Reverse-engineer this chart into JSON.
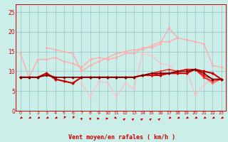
{
  "xlabel": "Vent moyen/en rafales ( km/h )",
  "x": [
    0,
    1,
    2,
    3,
    4,
    5,
    6,
    7,
    8,
    9,
    10,
    11,
    12,
    13,
    14,
    15,
    16,
    17,
    18,
    19,
    20,
    21,
    22,
    23
  ],
  "series": [
    {
      "color": "#ffaaaa",
      "alpha": 1.0,
      "lw": 1.0,
      "marker": "D",
      "ms": 2.0,
      "y": [
        14.5,
        8.5,
        13.0,
        13.0,
        13.5,
        12.5,
        12.0,
        11.0,
        13.0,
        13.5,
        13.0,
        13.5,
        14.5,
        14.5,
        16.0,
        16.0,
        17.0,
        21.0,
        18.5,
        18.0,
        17.5,
        17.0,
        11.5,
        11.0
      ]
    },
    {
      "color": "#ffaaaa",
      "alpha": 1.0,
      "lw": 1.0,
      "marker": "D",
      "ms": 2.0,
      "y": [
        null,
        null,
        null,
        16.0,
        15.5,
        15.0,
        14.5,
        10.0,
        11.5,
        12.5,
        13.5,
        14.5,
        15.0,
        15.5,
        15.5,
        16.5,
        17.5,
        17.5,
        18.5,
        null,
        null,
        null,
        null,
        null
      ]
    },
    {
      "color": "#ffbbbb",
      "alpha": 0.85,
      "lw": 1.0,
      "marker": "D",
      "ms": 2.0,
      "y": [
        null,
        null,
        null,
        null,
        null,
        null,
        null,
        7.0,
        3.5,
        7.5,
        7.0,
        3.5,
        7.0,
        5.5,
        14.5,
        14.0,
        12.0,
        11.5,
        9.5,
        10.5,
        4.0,
        6.5,
        8.0,
        null
      ]
    },
    {
      "color": "#ff6666",
      "alpha": 1.0,
      "lw": 1.0,
      "marker": "D",
      "ms": 2.0,
      "y": [
        8.5,
        8.5,
        8.5,
        9.5,
        8.5,
        8.5,
        8.5,
        8.5,
        8.5,
        8.5,
        8.5,
        8.5,
        8.5,
        8.5,
        9.0,
        9.0,
        9.5,
        9.5,
        9.5,
        10.5,
        10.5,
        8.5,
        7.0,
        8.0
      ]
    },
    {
      "color": "#ee2222",
      "alpha": 1.0,
      "lw": 1.0,
      "marker": "D",
      "ms": 2.0,
      "y": [
        8.5,
        8.5,
        8.5,
        9.0,
        8.5,
        8.5,
        8.5,
        8.5,
        8.5,
        8.5,
        8.5,
        8.5,
        8.5,
        8.5,
        9.0,
        9.5,
        10.0,
        10.5,
        10.0,
        10.5,
        10.5,
        8.5,
        7.5,
        8.0
      ]
    },
    {
      "color": "#cc0000",
      "alpha": 1.0,
      "lw": 1.5,
      "marker": "D",
      "ms": 2.5,
      "y": [
        8.5,
        8.5,
        8.5,
        9.5,
        8.0,
        7.5,
        7.0,
        8.5,
        8.5,
        8.5,
        8.5,
        8.5,
        8.5,
        8.5,
        9.0,
        9.0,
        9.0,
        9.5,
        9.5,
        9.5,
        10.5,
        10.0,
        9.5,
        8.0
      ]
    },
    {
      "color": "#ff0000",
      "alpha": 1.0,
      "lw": 1.0,
      "marker": "D",
      "ms": 2.0,
      "y": [
        null,
        null,
        null,
        null,
        null,
        null,
        null,
        null,
        null,
        null,
        null,
        null,
        null,
        null,
        null,
        9.0,
        9.5,
        9.5,
        10.0,
        10.5,
        10.5,
        9.0,
        8.0,
        8.0
      ]
    },
    {
      "color": "#660000",
      "alpha": 1.0,
      "lw": 1.0,
      "marker": "D",
      "ms": 2.0,
      "y": [
        8.5,
        8.5,
        8.5,
        9.0,
        8.5,
        8.5,
        8.5,
        8.5,
        8.5,
        8.5,
        8.5,
        8.5,
        8.5,
        8.5,
        9.0,
        9.5,
        9.5,
        9.5,
        10.0,
        10.0,
        10.5,
        9.5,
        8.0,
        8.0
      ]
    }
  ],
  "wind_dirs": [
    225,
    225,
    225,
    225,
    225,
    200,
    200,
    180,
    180,
    90,
    90,
    135,
    45,
    45,
    45,
    45,
    45,
    225,
    225,
    225,
    225,
    225,
    225,
    225
  ],
  "bg_color": "#cceee8",
  "grid_color": "#99cccc",
  "ylim": [
    0,
    27
  ],
  "yticks": [
    0,
    5,
    10,
    15,
    20,
    25
  ],
  "xticks": [
    0,
    1,
    2,
    3,
    4,
    5,
    6,
    7,
    8,
    9,
    10,
    11,
    12,
    13,
    14,
    15,
    16,
    17,
    18,
    19,
    20,
    21,
    22,
    23
  ]
}
